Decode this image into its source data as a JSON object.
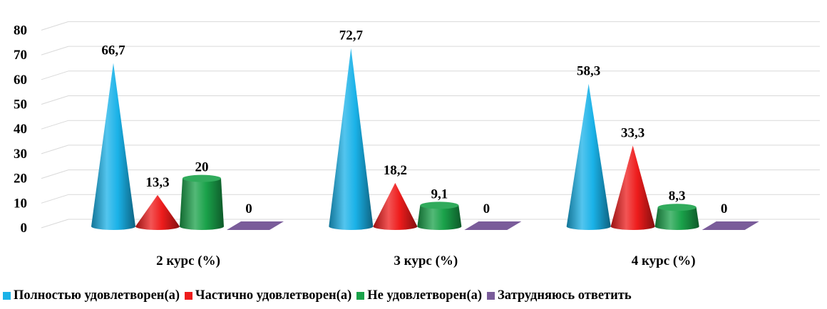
{
  "chart_data": {
    "type": "bar",
    "style": "3d-cone",
    "categories": [
      "2 курс (%)",
      "3 курс (%)",
      "4 курс (%)"
    ],
    "series": [
      {
        "name": "Полностью удовлетворен(а)",
        "values": [
          66.7,
          72.7,
          58.3
        ],
        "labels": [
          "66,7",
          "72,7",
          "58,3"
        ],
        "color": "#1ab2e8"
      },
      {
        "name": "Частично удовлетворен(а)",
        "values": [
          13.3,
          18.2,
          33.3
        ],
        "labels": [
          "13,3",
          "18,2",
          "33,3"
        ],
        "color": "#ee1c1c"
      },
      {
        "name": "Не удовлетворен(а)",
        "values": [
          20,
          9.1,
          8.3
        ],
        "labels": [
          "20",
          "9,1",
          "8,3"
        ],
        "color": "#1aa24a"
      },
      {
        "name": "Затрудняюсь ответить",
        "values": [
          0,
          0,
          0
        ],
        "labels": [
          "0",
          "0",
          "0"
        ],
        "color": "#7a5c9a"
      }
    ],
    "ylim": [
      0,
      80
    ],
    "yticks": [
      "0",
      "10",
      "20",
      "30",
      "40",
      "50",
      "60",
      "70",
      "80"
    ],
    "grid": true,
    "legend": "bottom"
  }
}
